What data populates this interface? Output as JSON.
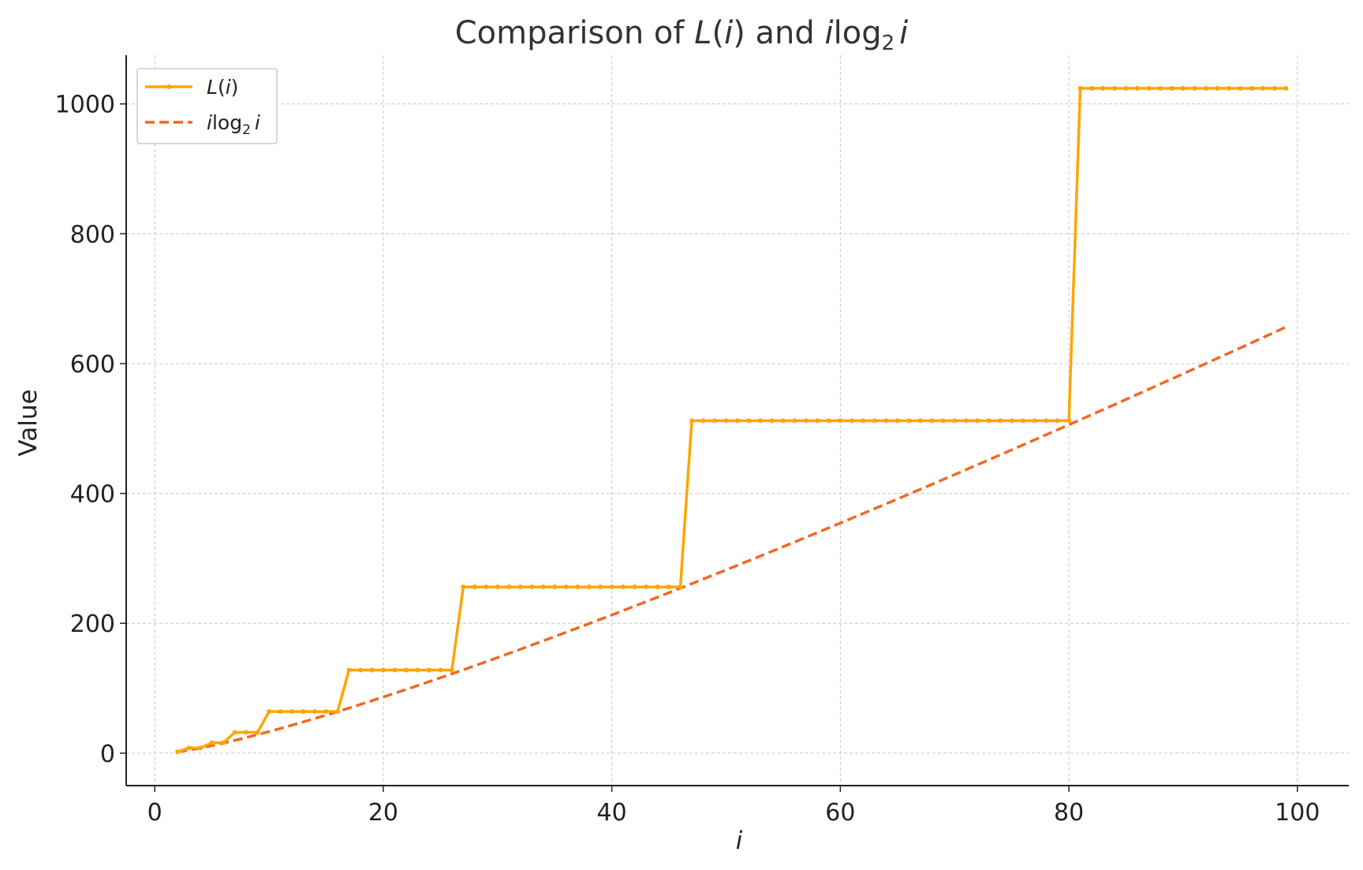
{
  "chart_data": {
    "type": "line",
    "title": {
      "prefix": "Comparison of ",
      "l_func": "L",
      "paren_open": "(",
      "var": "i",
      "paren_close": ")",
      "middle": " and ",
      "log": "log",
      "sub": "2"
    },
    "xlabel": "i",
    "ylabel": "Value",
    "xlim": [
      -2.5,
      104.5
    ],
    "ylim": [
      -50,
      1075
    ],
    "xticks": [
      0,
      20,
      40,
      60,
      80,
      100
    ],
    "yticks": [
      0,
      200,
      400,
      600,
      800,
      1000
    ],
    "grid": true,
    "legend_position": "top-left",
    "series": [
      {
        "key": "L",
        "legend": {
          "func": "L",
          "paren_open": "(",
          "var": "i",
          "paren_close": ")"
        },
        "color": "#FFA500",
        "style": "solid-with-markers",
        "x": [
          2,
          3,
          4,
          5,
          6,
          7,
          8,
          9,
          10,
          11,
          12,
          13,
          14,
          15,
          16,
          17,
          18,
          19,
          20,
          21,
          22,
          23,
          24,
          25,
          26,
          27,
          28,
          29,
          30,
          31,
          32,
          33,
          34,
          35,
          36,
          37,
          38,
          39,
          40,
          41,
          42,
          43,
          44,
          45,
          46,
          47,
          48,
          49,
          50,
          51,
          52,
          53,
          54,
          55,
          56,
          57,
          58,
          59,
          60,
          61,
          62,
          63,
          64,
          65,
          66,
          67,
          68,
          69,
          70,
          71,
          72,
          73,
          74,
          75,
          76,
          77,
          78,
          79,
          80,
          81,
          82,
          83,
          84,
          85,
          86,
          87,
          88,
          89,
          90,
          91,
          92,
          93,
          94,
          95,
          96,
          97,
          98,
          99
        ],
        "values": [
          2,
          8,
          8,
          16,
          16,
          32,
          32,
          32,
          64,
          64,
          64,
          64,
          64,
          64,
          64,
          128,
          128,
          128,
          128,
          128,
          128,
          128,
          128,
          128,
          128,
          256,
          256,
          256,
          256,
          256,
          256,
          256,
          256,
          256,
          256,
          256,
          256,
          256,
          256,
          256,
          256,
          256,
          256,
          256,
          256,
          512,
          512,
          512,
          512,
          512,
          512,
          512,
          512,
          512,
          512,
          512,
          512,
          512,
          512,
          512,
          512,
          512,
          512,
          512,
          512,
          512,
          512,
          512,
          512,
          512,
          512,
          512,
          512,
          512,
          512,
          512,
          512,
          512,
          512,
          1024,
          1024,
          1024,
          1024,
          1024,
          1024,
          1024,
          1024,
          1024,
          1024,
          1024,
          1024,
          1024,
          1024,
          1024,
          1024,
          1024,
          1024,
          1024
        ]
      },
      {
        "key": "ilog2i",
        "legend": {
          "var": "i",
          "log": "log",
          "sub": "2",
          "var2": "i"
        },
        "color": "#EE6A24",
        "style": "dashed",
        "function": "i*log2(i)",
        "x_range": [
          2,
          99
        ]
      }
    ]
  }
}
